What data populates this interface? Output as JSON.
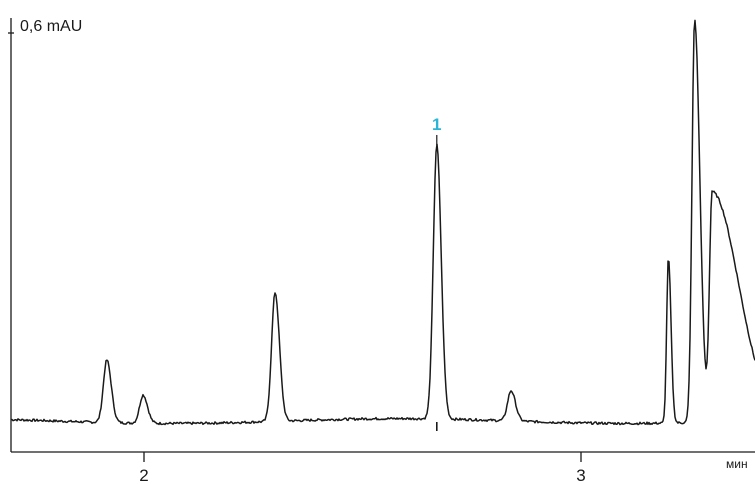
{
  "chart_data": {
    "type": "line",
    "title": "",
    "y_scale_label": "0,6 mAU",
    "xlabel": "мин",
    "ylabel": "",
    "xlim": [
      1.78,
      3.47
    ],
    "ylim": [
      0,
      2.0
    ],
    "x_ticks": [
      {
        "value": 2,
        "label": "2"
      },
      {
        "value": 3,
        "label": "3"
      }
    ],
    "grid": false,
    "colors": {
      "trace": "#1a1a1a",
      "peak_label": "#29b6d6"
    },
    "peaks": [
      {
        "time": 1.915,
        "height": 0.31
      },
      {
        "time": 1.998,
        "height": 0.14
      },
      {
        "time": 2.3,
        "height": 0.64
      },
      {
        "time": 2.67,
        "height": 1.36,
        "label": "1"
      },
      {
        "time": 2.84,
        "height": 0.15
      },
      {
        "time": 3.2,
        "height": 0.82
      },
      {
        "time": 3.26,
        "height": 2.0
      },
      {
        "time": 3.3,
        "height": 1.14
      }
    ]
  }
}
